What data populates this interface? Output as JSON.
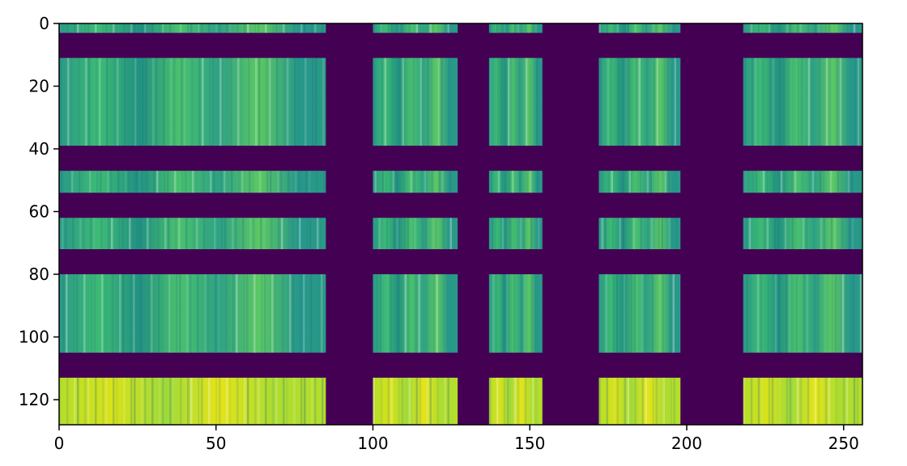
{
  "chart_data": {
    "type": "heatmap",
    "title": "",
    "xlabel": "",
    "ylabel": "",
    "xlim": [
      0,
      256
    ],
    "ylim": [
      128,
      0
    ],
    "x_ticks": [
      0,
      50,
      100,
      150,
      200,
      250
    ],
    "y_ticks": [
      0,
      20,
      40,
      60,
      80,
      100,
      120
    ],
    "background_value_color": "#440154",
    "colormap": "viridis",
    "column_bands": [
      {
        "x": [
          0,
          85
        ],
        "active": true
      },
      {
        "x": [
          85,
          100
        ],
        "active": false
      },
      {
        "x": [
          100,
          127
        ],
        "active": true
      },
      {
        "x": [
          127,
          137
        ],
        "active": false
      },
      {
        "x": [
          137,
          154
        ],
        "active": true
      },
      {
        "x": [
          154,
          172
        ],
        "active": false
      },
      {
        "x": [
          172,
          198
        ],
        "active": true
      },
      {
        "x": [
          198,
          218
        ],
        "active": false
      },
      {
        "x": [
          218,
          256
        ],
        "active": true
      }
    ],
    "row_bands": [
      {
        "y": [
          0,
          3
        ],
        "active": true,
        "intensity": 0.55
      },
      {
        "y": [
          3,
          11
        ],
        "active": false
      },
      {
        "y": [
          11,
          39
        ],
        "active": true,
        "intensity": 0.6
      },
      {
        "y": [
          39,
          47
        ],
        "active": false
      },
      {
        "y": [
          47,
          54
        ],
        "active": true,
        "intensity": 0.58
      },
      {
        "y": [
          54,
          62
        ],
        "active": false
      },
      {
        "y": [
          62,
          72
        ],
        "active": true,
        "intensity": 0.62
      },
      {
        "y": [
          72,
          80
        ],
        "active": false
      },
      {
        "y": [
          80,
          105
        ],
        "active": true,
        "intensity": 0.64
      },
      {
        "y": [
          105,
          113
        ],
        "active": false
      },
      {
        "y": [
          113,
          128
        ],
        "active": true,
        "intensity": 0.9
      }
    ]
  }
}
